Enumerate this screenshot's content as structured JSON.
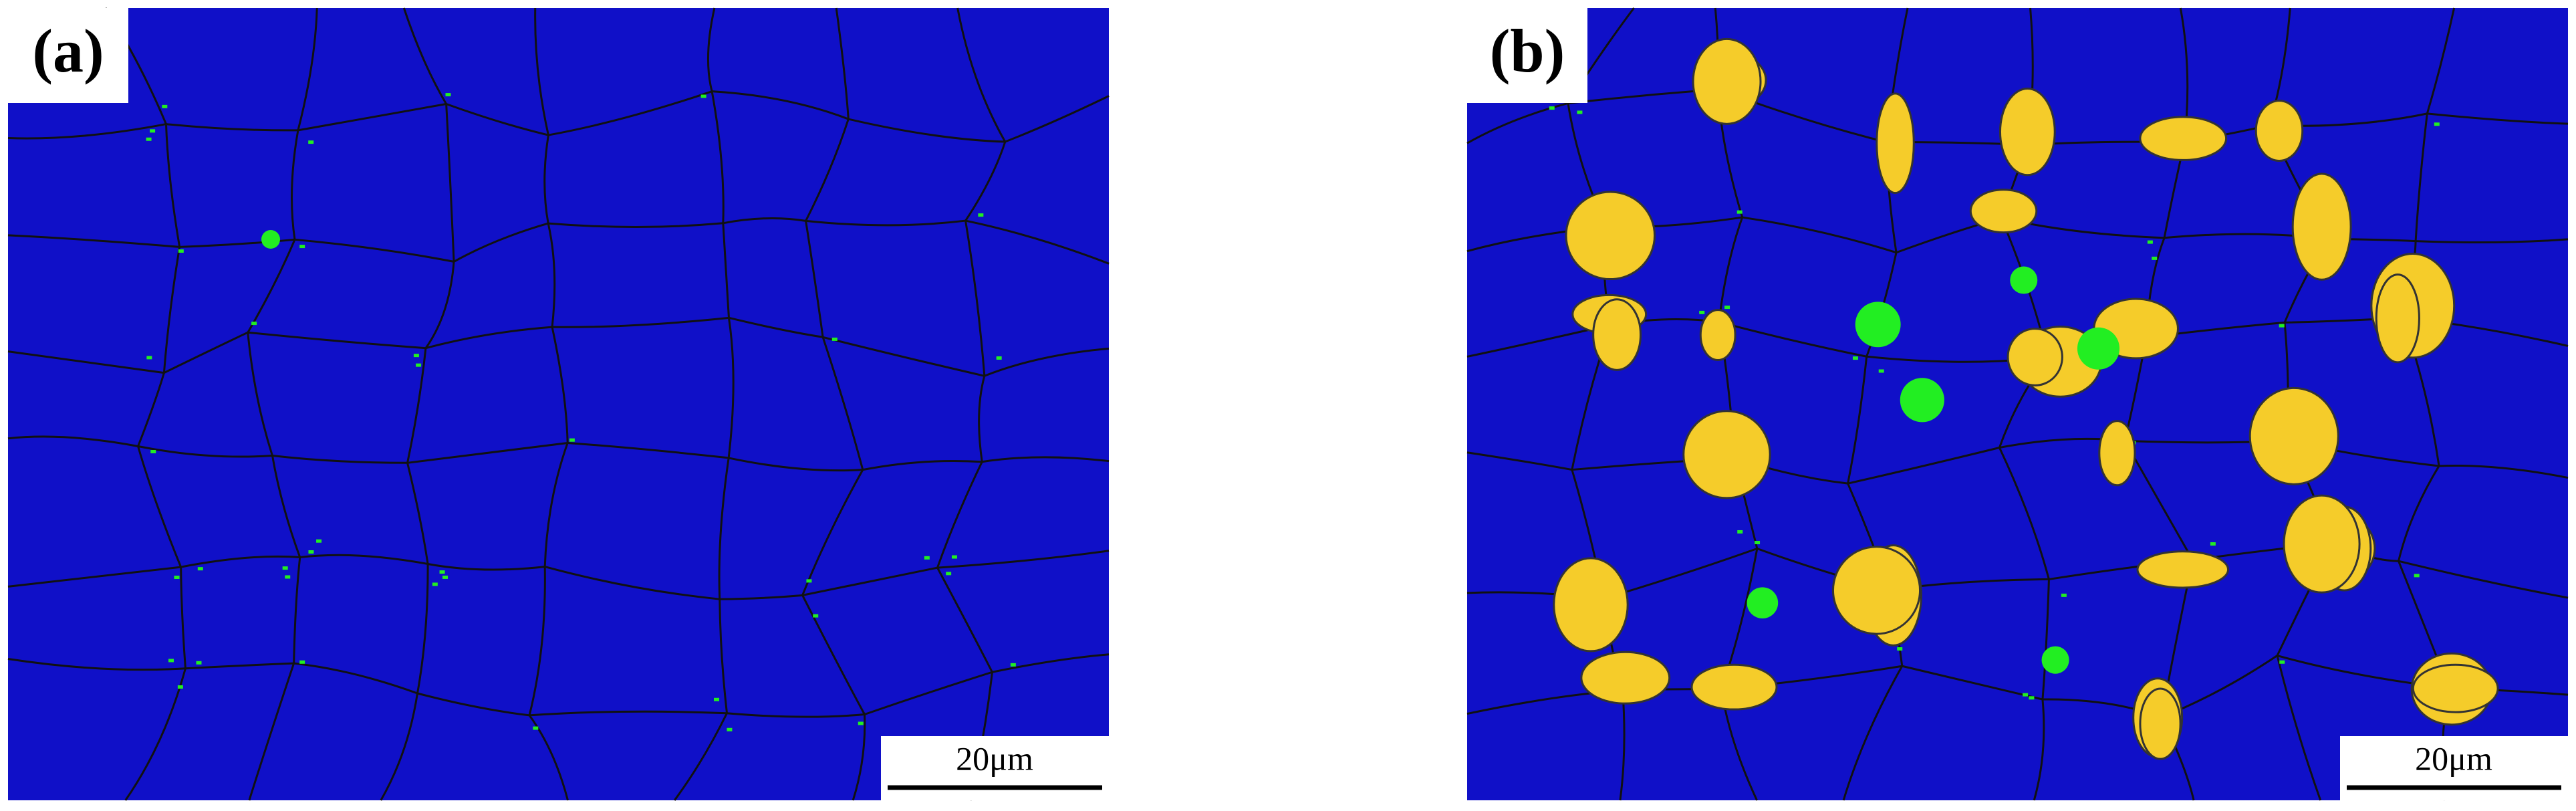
{
  "panels": [
    {
      "label": "(a)",
      "scale_bar": "20μm"
    },
    {
      "label": "(b)",
      "scale_bar": "20μm"
    }
  ]
}
